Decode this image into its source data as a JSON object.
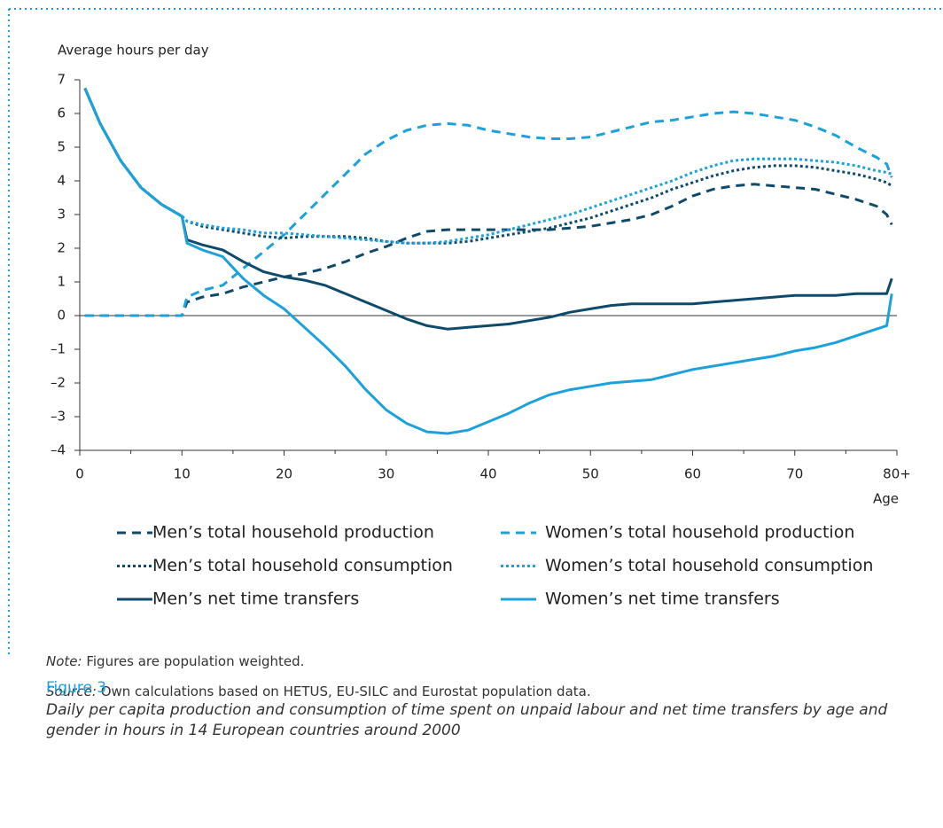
{
  "chart_data": {
    "type": "line",
    "y_label": "Average hours per day",
    "x_label": "Age",
    "x": [
      0.5,
      2,
      4,
      6,
      8,
      10,
      10.5,
      12,
      14,
      16,
      18,
      20,
      22,
      24,
      26,
      28,
      30,
      32,
      34,
      36,
      38,
      40,
      42,
      44,
      46,
      48,
      50,
      52,
      54,
      56,
      58,
      60,
      62,
      64,
      66,
      68,
      70,
      72,
      74,
      76,
      78,
      79,
      79.5
    ],
    "series": [
      {
        "name": "Men’s total household production",
        "color": "#0d4a6b",
        "style": "dashed",
        "values": [
          0,
          0,
          0,
          0,
          0,
          0,
          0.4,
          0.55,
          0.65,
          0.85,
          1.0,
          1.15,
          1.25,
          1.4,
          1.6,
          1.85,
          2.05,
          2.3,
          2.5,
          2.55,
          2.55,
          2.55,
          2.55,
          2.55,
          2.55,
          2.6,
          2.65,
          2.75,
          2.85,
          3.0,
          3.25,
          3.55,
          3.75,
          3.85,
          3.9,
          3.85,
          3.8,
          3.75,
          3.6,
          3.45,
          3.25,
          3.0,
          2.7
        ]
      },
      {
        "name": "Women’s total household production",
        "color": "#1ba1db",
        "style": "dashed",
        "values": [
          0,
          0,
          0,
          0,
          0,
          0,
          0.55,
          0.75,
          0.9,
          1.4,
          1.9,
          2.4,
          3.0,
          3.6,
          4.2,
          4.8,
          5.2,
          5.5,
          5.65,
          5.7,
          5.65,
          5.5,
          5.4,
          5.3,
          5.25,
          5.25,
          5.3,
          5.45,
          5.6,
          5.75,
          5.8,
          5.9,
          6.0,
          6.05,
          6.0,
          5.9,
          5.8,
          5.6,
          5.35,
          5.0,
          4.7,
          4.5,
          4.1
        ]
      },
      {
        "name": "Men’s total household consumption",
        "color": "#0d4a6b",
        "style": "dotted",
        "values": [
          6.75,
          5.7,
          4.6,
          3.8,
          3.3,
          2.95,
          2.8,
          2.65,
          2.55,
          2.45,
          2.35,
          2.3,
          2.35,
          2.35,
          2.35,
          2.3,
          2.2,
          2.15,
          2.15,
          2.15,
          2.2,
          2.3,
          2.4,
          2.5,
          2.6,
          2.75,
          2.9,
          3.1,
          3.3,
          3.5,
          3.75,
          3.95,
          4.15,
          4.3,
          4.4,
          4.45,
          4.45,
          4.4,
          4.3,
          4.2,
          4.05,
          3.95,
          3.85
        ]
      },
      {
        "name": "Women’s total household consumption",
        "color": "#1ba1db",
        "style": "dotted",
        "values": [
          6.75,
          5.7,
          4.6,
          3.8,
          3.3,
          2.95,
          2.8,
          2.7,
          2.6,
          2.55,
          2.45,
          2.45,
          2.4,
          2.35,
          2.3,
          2.25,
          2.2,
          2.15,
          2.15,
          2.2,
          2.3,
          2.4,
          2.55,
          2.7,
          2.85,
          3.0,
          3.2,
          3.4,
          3.6,
          3.8,
          4.0,
          4.25,
          4.45,
          4.6,
          4.65,
          4.65,
          4.65,
          4.6,
          4.55,
          4.45,
          4.3,
          4.25,
          4.2
        ]
      },
      {
        "name": "Men’s net time transfers",
        "color": "#0d4a6b",
        "style": "solid",
        "values": [
          6.75,
          5.7,
          4.6,
          3.8,
          3.3,
          2.95,
          2.25,
          2.1,
          1.95,
          1.6,
          1.3,
          1.15,
          1.05,
          0.9,
          0.65,
          0.4,
          0.15,
          -0.1,
          -0.3,
          -0.4,
          -0.35,
          -0.3,
          -0.25,
          -0.15,
          -0.05,
          0.1,
          0.2,
          0.3,
          0.35,
          0.35,
          0.35,
          0.35,
          0.4,
          0.45,
          0.5,
          0.55,
          0.6,
          0.6,
          0.6,
          0.65,
          0.65,
          0.65,
          1.1
        ]
      },
      {
        "name": "Women’s net time transfers",
        "color": "#1ba1db",
        "style": "solid",
        "values": [
          6.75,
          5.7,
          4.6,
          3.8,
          3.3,
          2.95,
          2.15,
          1.95,
          1.75,
          1.1,
          0.6,
          0.2,
          -0.35,
          -0.9,
          -1.5,
          -2.2,
          -2.8,
          -3.2,
          -3.45,
          -3.5,
          -3.4,
          -3.15,
          -2.9,
          -2.6,
          -2.35,
          -2.2,
          -2.1,
          -2.0,
          -1.95,
          -1.9,
          -1.75,
          -1.6,
          -1.5,
          -1.4,
          -1.3,
          -1.2,
          -1.05,
          -0.95,
          -0.8,
          -0.6,
          -0.4,
          -0.3,
          0.65
        ]
      }
    ],
    "xlim": [
      0,
      80
    ],
    "xticks": [
      0,
      10,
      20,
      30,
      40,
      50,
      60,
      70,
      {
        "value": 80,
        "label": "80+"
      }
    ],
    "ylim": [
      -4,
      7
    ],
    "yticks": [
      {
        "value": -4,
        "label": "–4"
      },
      {
        "value": -3,
        "label": "–3"
      },
      {
        "value": -2,
        "label": "–2"
      },
      {
        "value": -1,
        "label": "–1"
      },
      0,
      1,
      2,
      3,
      4,
      5,
      6,
      7
    ]
  },
  "notes": {
    "note_label": "Note:",
    "note_text": "Figures are population weighted.",
    "source_label": "Source:",
    "source_text": "Own calculations based on HETUS, EU-SILC and Eurostat population data.",
    "figure_label": "Figure 3",
    "caption": "Daily per capita production and consumption of time spent on unpaid labour and net time transfers by age and gender in hours in 14 European countries around 2000"
  }
}
